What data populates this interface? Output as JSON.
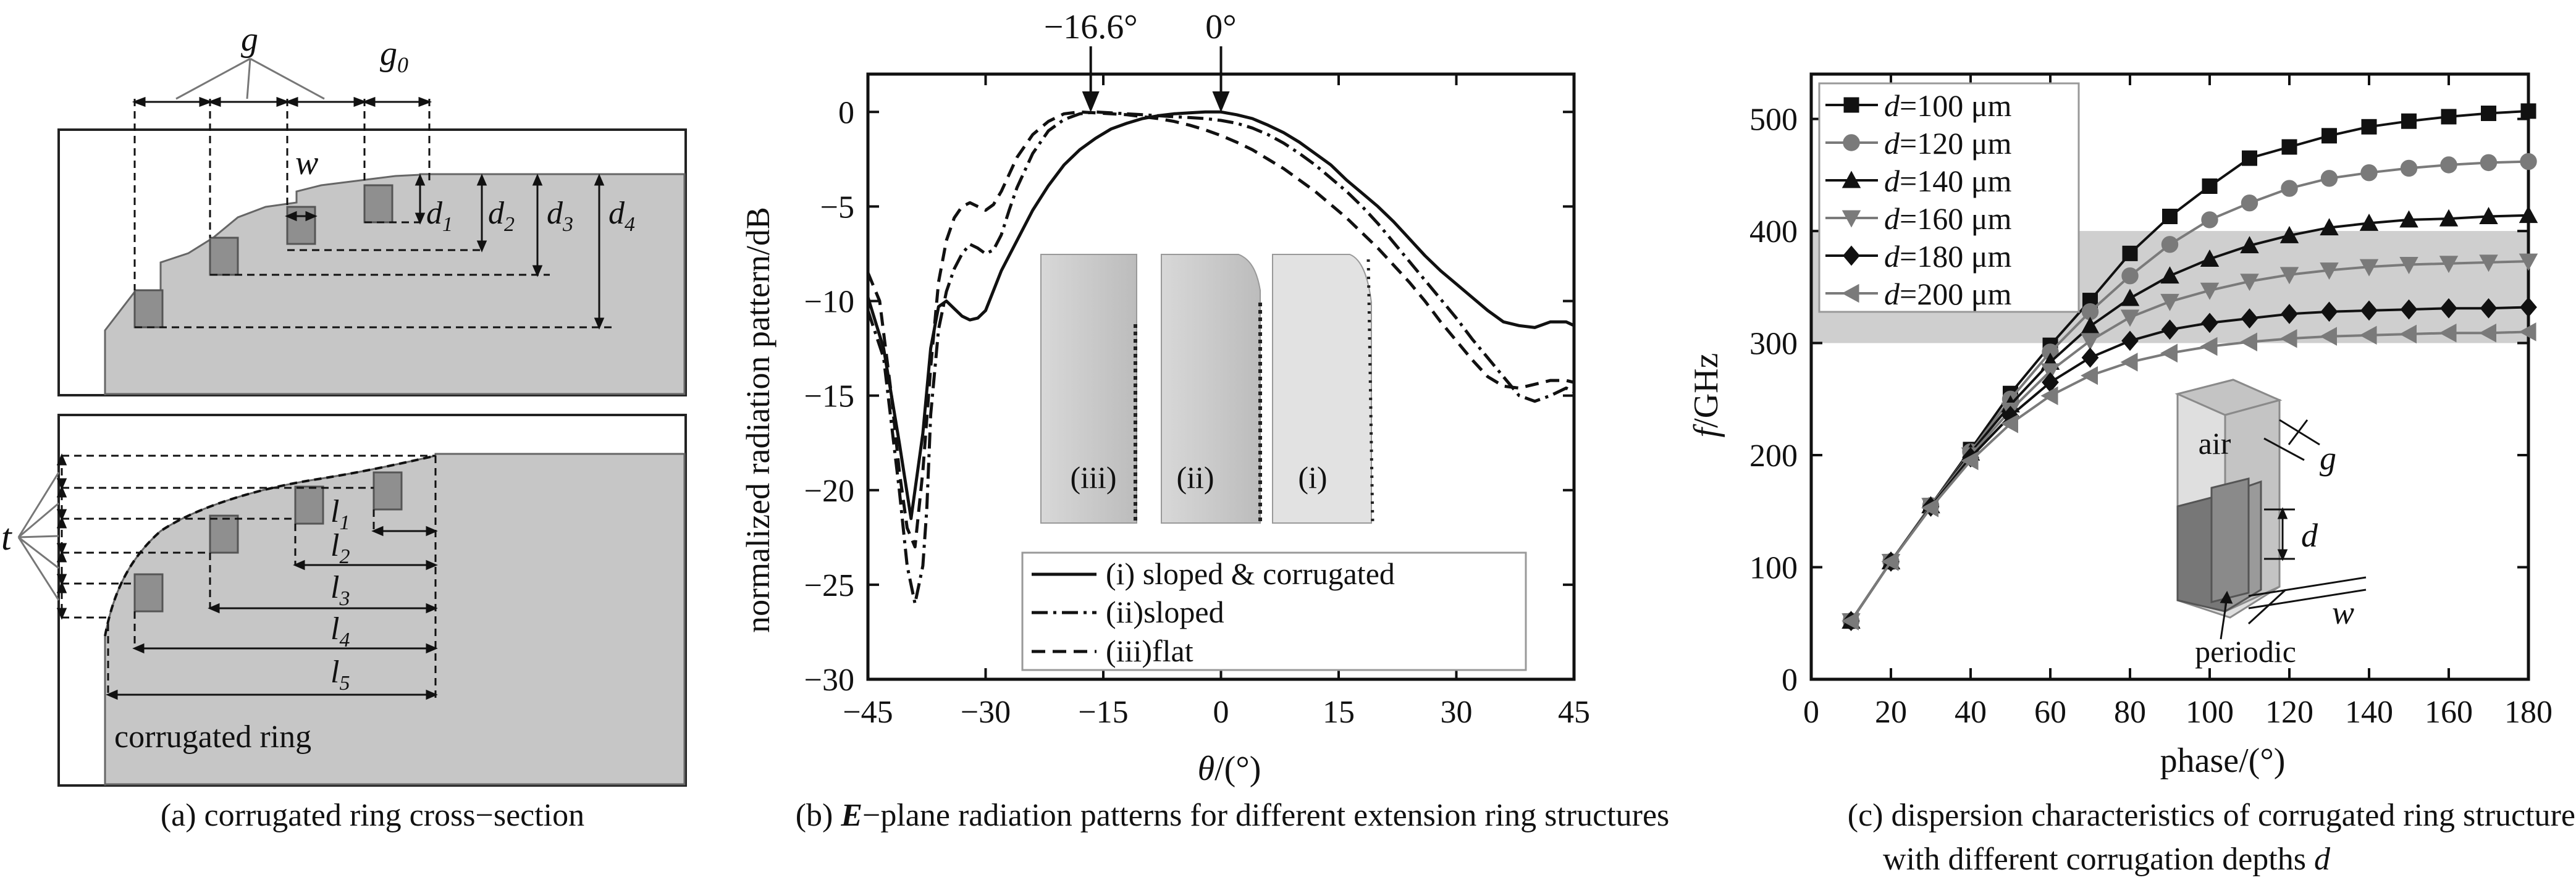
{
  "panel_a": {
    "caption": "(a) corrugated ring cross−section",
    "labels": {
      "g": "g",
      "g0_base": "g",
      "g0_sub": "0",
      "w": "w",
      "t": "t",
      "d": "d",
      "l": "l",
      "d_subs": [
        "1",
        "2",
        "3",
        "4"
      ],
      "l_subs": [
        "1",
        "2",
        "3",
        "4",
        "5"
      ],
      "corrugated_ring": "corrugated ring"
    }
  },
  "chart_data": [
    {
      "type": "line",
      "panel": "b",
      "caption_bold": "E",
      "caption_rest": "−plane radiation patterns for different extension ring structures",
      "caption_prefix": "(b) ",
      "xlabel_sym": "θ",
      "xlabel_rest": "/(°)",
      "ylabel": "normalized radiation pattern/dB",
      "xlim": [
        -45,
        45
      ],
      "ylim": [
        -30,
        2
      ],
      "xticks": [
        -45,
        -30,
        -15,
        0,
        15,
        30,
        45
      ],
      "yticks": [
        0,
        -5,
        -10,
        -15,
        -20,
        -25,
        -30
      ],
      "annotations": [
        {
          "text": "−16.6°",
          "x": -16.6
        },
        {
          "text": "0°",
          "x": 0
        }
      ],
      "inset_labels": [
        "(iii)",
        "(ii)",
        "(i)"
      ],
      "legend_placement": "bottom-right",
      "series": [
        {
          "name": "(i) sloped & corrugated",
          "style": "solid",
          "x": [
            -45,
            -43,
            -41,
            -39.5,
            -38,
            -37,
            -36,
            -35,
            -34,
            -33,
            -32,
            -31,
            -30,
            -28,
            -26,
            -24,
            -22,
            -20,
            -18,
            -16,
            -14,
            -12,
            -10,
            -8,
            -6,
            -4,
            -2,
            0,
            2,
            4,
            6,
            8,
            10,
            12,
            14,
            16,
            18,
            20,
            22,
            24,
            26,
            28,
            30,
            32,
            34,
            36,
            38,
            40,
            42,
            44,
            45
          ],
          "y": [
            -9.8,
            -12.5,
            -17.5,
            -21.5,
            -17,
            -12.5,
            -10.3,
            -10,
            -10.4,
            -10.8,
            -11,
            -10.9,
            -10.5,
            -8.4,
            -6.8,
            -5.2,
            -3.9,
            -2.8,
            -2.0,
            -1.4,
            -0.9,
            -0.6,
            -0.35,
            -0.2,
            -0.1,
            -0.05,
            0,
            0,
            -0.15,
            -0.35,
            -0.7,
            -1.1,
            -1.6,
            -2.2,
            -2.8,
            -3.6,
            -4.3,
            -5.0,
            -5.8,
            -6.7,
            -7.6,
            -8.4,
            -9.1,
            -9.8,
            -10.5,
            -11.1,
            -11.3,
            -11.4,
            -11.1,
            -11.1,
            -11.3
          ]
        },
        {
          "name": "(ii)sloped",
          "style": "dashdot",
          "x": [
            -45,
            -43,
            -41,
            -40,
            -39,
            -38,
            -37.5,
            -37,
            -36,
            -35,
            -34,
            -33,
            -32,
            -31,
            -30,
            -29,
            -28,
            -27,
            -26,
            -24,
            -22,
            -20,
            -18,
            -16,
            -14,
            -12,
            -10,
            -8,
            -6,
            -4,
            -2,
            0,
            2,
            4,
            6,
            8,
            10,
            12,
            14,
            16,
            18,
            20,
            22,
            24,
            26,
            28,
            30,
            32,
            34,
            36,
            38,
            40,
            42,
            44,
            45
          ],
          "y": [
            -10.5,
            -13,
            -20,
            -24,
            -26,
            -24,
            -21,
            -16,
            -11.5,
            -9.5,
            -8.3,
            -7.5,
            -7,
            -7.2,
            -7.5,
            -7.3,
            -6.5,
            -5.2,
            -4,
            -2.2,
            -1.0,
            -0.4,
            -0.1,
            0,
            -0.05,
            -0.1,
            -0.15,
            -0.2,
            -0.25,
            -0.3,
            -0.35,
            -0.45,
            -0.6,
            -0.85,
            -1.2,
            -1.65,
            -2.2,
            -2.8,
            -3.5,
            -4.2,
            -5.0,
            -5.9,
            -6.9,
            -7.9,
            -8.9,
            -9.9,
            -10.9,
            -12.0,
            -13.0,
            -14.0,
            -15.0,
            -15.3,
            -15.0,
            -14.6,
            -14.8
          ]
        },
        {
          "name": "(iii)flat",
          "style": "dashed",
          "x": [
            -45,
            -43.5,
            -42,
            -41,
            -40,
            -39,
            -38,
            -37,
            -36,
            -35,
            -34,
            -33,
            -32,
            -31,
            -30,
            -29,
            -28,
            -27,
            -26,
            -24,
            -22,
            -20,
            -18,
            -16,
            -14,
            -12,
            -10,
            -8,
            -6,
            -4,
            -2,
            0,
            2,
            4,
            6,
            8,
            10,
            12,
            14,
            16,
            18,
            20,
            22,
            24,
            26,
            28,
            30,
            32,
            34,
            36,
            38,
            40,
            42,
            44,
            45
          ],
          "y": [
            -8.5,
            -10,
            -15,
            -19,
            -22,
            -23,
            -19,
            -13.5,
            -9,
            -6.8,
            -5.6,
            -5,
            -4.8,
            -5,
            -5.2,
            -4.9,
            -4.2,
            -3.3,
            -2.4,
            -1.2,
            -0.5,
            -0.1,
            0,
            -0.05,
            -0.1,
            -0.15,
            -0.25,
            -0.35,
            -0.5,
            -0.7,
            -0.95,
            -1.25,
            -1.6,
            -2.0,
            -2.5,
            -3.0,
            -3.6,
            -4.2,
            -4.9,
            -5.6,
            -6.4,
            -7.2,
            -8.1,
            -9.0,
            -10.0,
            -11.1,
            -12.1,
            -13.1,
            -14.0,
            -14.5,
            -14.6,
            -14.4,
            -14.2,
            -14.2,
            -14.3
          ]
        }
      ]
    },
    {
      "type": "line",
      "panel": "c",
      "caption_line1": "(c) dispersion characteristics of corrugated ring structures",
      "caption_line2_text": "with different corrugation depths ",
      "caption_line2_sym": "d",
      "xlabel": "phase/(°)",
      "ylabel_sym": "f",
      "ylabel_rest": "/GHz",
      "xlim": [
        0,
        180
      ],
      "ylim": [
        0,
        540
      ],
      "xticks": [
        0,
        20,
        40,
        60,
        80,
        100,
        120,
        140,
        160,
        180
      ],
      "yticks": [
        0,
        100,
        200,
        300,
        400,
        500
      ],
      "band": {
        "low": 300,
        "high": 400
      },
      "legend_placement": "top-left",
      "legend_sym": "d",
      "inset_labels": {
        "air": "air",
        "g": "g",
        "d": "d",
        "w": "w",
        "periodic": "periodic"
      },
      "x": [
        10,
        20,
        30,
        40,
        50,
        60,
        70,
        80,
        90,
        100,
        110,
        120,
        130,
        140,
        150,
        160,
        170,
        180
      ],
      "series": [
        {
          "name": "=100 μm",
          "marker": "square",
          "color": "#111111",
          "values": [
            52,
            105,
            155,
            205,
            255,
            298,
            338,
            380,
            413,
            440,
            465,
            475,
            485,
            493,
            498,
            502,
            505,
            507
          ]
        },
        {
          "name": "=120 μm",
          "marker": "circle",
          "color": "#7a7a7a",
          "values": [
            52,
            105,
            155,
            203,
            250,
            292,
            328,
            360,
            388,
            410,
            425,
            438,
            447,
            452,
            456,
            459,
            461,
            462
          ]
        },
        {
          "name": "=140 μm",
          "marker": "triangle-up",
          "color": "#111111",
          "values": [
            52,
            105,
            155,
            202,
            245,
            283,
            315,
            340,
            360,
            375,
            387,
            396,
            403,
            407,
            410,
            411,
            413,
            414
          ]
        },
        {
          "name": "=160 μm",
          "marker": "triangle-down",
          "color": "#7a7a7a",
          "values": [
            52,
            105,
            155,
            200,
            240,
            275,
            302,
            323,
            337,
            347,
            355,
            361,
            365,
            368,
            370,
            371,
            372,
            373
          ]
        },
        {
          "name": "=180 μm",
          "marker": "diamond",
          "color": "#111111",
          "values": [
            52,
            105,
            154,
            198,
            235,
            265,
            287,
            302,
            312,
            318,
            322,
            326,
            328,
            329,
            330,
            331,
            331,
            332
          ]
        },
        {
          "name": "=200 μm",
          "marker": "triangle-left",
          "color": "#7a7a7a",
          "values": [
            52,
            105,
            153,
            195,
            228,
            253,
            271,
            283,
            291,
            297,
            301,
            304,
            306,
            307,
            308,
            309,
            309,
            310
          ]
        }
      ]
    }
  ]
}
